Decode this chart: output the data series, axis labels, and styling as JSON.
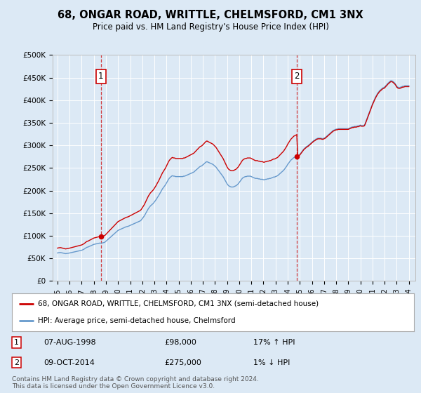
{
  "title": "68, ONGAR ROAD, WRITTLE, CHELMSFORD, CM1 3NX",
  "subtitle": "Price paid vs. HM Land Registry's House Price Index (HPI)",
  "background_color": "#dce9f5",
  "plot_bg_color": "#dce9f5",
  "y_ticks": [
    0,
    50000,
    100000,
    150000,
    200000,
    250000,
    300000,
    350000,
    400000,
    450000,
    500000
  ],
  "y_tick_labels": [
    "£0",
    "£50K",
    "£100K",
    "£150K",
    "£200K",
    "£250K",
    "£300K",
    "£350K",
    "£400K",
    "£450K",
    "£500K"
  ],
  "red_line_color": "#cc0000",
  "blue_line_color": "#6699cc",
  "annotation1_year": 1998.58,
  "annotation1_price": 98000,
  "annotation1_label": "1",
  "annotation1_date": "07-AUG-1998",
  "annotation1_price_str": "£98,000",
  "annotation1_hpi_str": "17% ↑ HPI",
  "annotation2_year": 2014.77,
  "annotation2_price": 275000,
  "annotation2_label": "2",
  "annotation2_date": "09-OCT-2014",
  "annotation2_price_str": "£275,000",
  "annotation2_hpi_str": "1% ↓ HPI",
  "legend_line1": "68, ONGAR ROAD, WRITTLE, CHELMSFORD, CM1 3NX (semi-detached house)",
  "legend_line2": "HPI: Average price, semi-detached house, Chelmsford",
  "footer1": "Contains HM Land Registry data © Crown copyright and database right 2024.",
  "footer2": "This data is licensed under the Open Government Licence v3.0.",
  "hpi_years": [
    1995.0,
    1995.083,
    1995.167,
    1995.25,
    1995.333,
    1995.417,
    1995.5,
    1995.583,
    1995.667,
    1995.75,
    1995.833,
    1995.917,
    1996.0,
    1996.083,
    1996.167,
    1996.25,
    1996.333,
    1996.417,
    1996.5,
    1996.583,
    1996.667,
    1996.75,
    1996.833,
    1996.917,
    1997.0,
    1997.083,
    1997.167,
    1997.25,
    1997.333,
    1997.417,
    1997.5,
    1997.583,
    1997.667,
    1997.75,
    1997.833,
    1997.917,
    1998.0,
    1998.083,
    1998.167,
    1998.25,
    1998.333,
    1998.417,
    1998.5,
    1998.583,
    1998.667,
    1998.75,
    1998.833,
    1998.917,
    1999.0,
    1999.083,
    1999.167,
    1999.25,
    1999.333,
    1999.417,
    1999.5,
    1999.583,
    1999.667,
    1999.75,
    1999.833,
    1999.917,
    2000.0,
    2000.083,
    2000.167,
    2000.25,
    2000.333,
    2000.417,
    2000.5,
    2000.583,
    2000.667,
    2000.75,
    2000.833,
    2000.917,
    2001.0,
    2001.083,
    2001.167,
    2001.25,
    2001.333,
    2001.417,
    2001.5,
    2001.583,
    2001.667,
    2001.75,
    2001.833,
    2001.917,
    2002.0,
    2002.083,
    2002.167,
    2002.25,
    2002.333,
    2002.417,
    2002.5,
    2002.583,
    2002.667,
    2002.75,
    2002.833,
    2002.917,
    2003.0,
    2003.083,
    2003.167,
    2003.25,
    2003.333,
    2003.417,
    2003.5,
    2003.583,
    2003.667,
    2003.75,
    2003.833,
    2003.917,
    2004.0,
    2004.083,
    2004.167,
    2004.25,
    2004.333,
    2004.417,
    2004.5,
    2004.583,
    2004.667,
    2004.75,
    2004.833,
    2004.917,
    2005.0,
    2005.083,
    2005.167,
    2005.25,
    2005.333,
    2005.417,
    2005.5,
    2005.583,
    2005.667,
    2005.75,
    2005.833,
    2005.917,
    2006.0,
    2006.083,
    2006.167,
    2006.25,
    2006.333,
    2006.417,
    2006.5,
    2006.583,
    2006.667,
    2006.75,
    2006.833,
    2006.917,
    2007.0,
    2007.083,
    2007.167,
    2007.25,
    2007.333,
    2007.417,
    2007.5,
    2007.583,
    2007.667,
    2007.75,
    2007.833,
    2007.917,
    2008.0,
    2008.083,
    2008.167,
    2008.25,
    2008.333,
    2008.417,
    2008.5,
    2008.583,
    2008.667,
    2008.75,
    2008.833,
    2008.917,
    2009.0,
    2009.083,
    2009.167,
    2009.25,
    2009.333,
    2009.417,
    2009.5,
    2009.583,
    2009.667,
    2009.75,
    2009.833,
    2009.917,
    2010.0,
    2010.083,
    2010.167,
    2010.25,
    2010.333,
    2010.417,
    2010.5,
    2010.583,
    2010.667,
    2010.75,
    2010.833,
    2010.917,
    2011.0,
    2011.083,
    2011.167,
    2011.25,
    2011.333,
    2011.417,
    2011.5,
    2011.583,
    2011.667,
    2011.75,
    2011.833,
    2011.917,
    2012.0,
    2012.083,
    2012.167,
    2012.25,
    2012.333,
    2012.417,
    2012.5,
    2012.583,
    2012.667,
    2012.75,
    2012.833,
    2012.917,
    2013.0,
    2013.083,
    2013.167,
    2013.25,
    2013.333,
    2013.417,
    2013.5,
    2013.583,
    2013.667,
    2013.75,
    2013.833,
    2013.917,
    2014.0,
    2014.083,
    2014.167,
    2014.25,
    2014.333,
    2014.417,
    2014.5,
    2014.583,
    2014.667,
    2014.75,
    2014.833,
    2014.917,
    2015.0,
    2015.083,
    2015.167,
    2015.25,
    2015.333,
    2015.417,
    2015.5,
    2015.583,
    2015.667,
    2015.75,
    2015.833,
    2015.917,
    2016.0,
    2016.083,
    2016.167,
    2016.25,
    2016.333,
    2016.417,
    2016.5,
    2016.583,
    2016.667,
    2016.75,
    2016.833,
    2016.917,
    2017.0,
    2017.083,
    2017.167,
    2017.25,
    2017.333,
    2017.417,
    2017.5,
    2017.583,
    2017.667,
    2017.75,
    2017.833,
    2017.917,
    2018.0,
    2018.083,
    2018.167,
    2018.25,
    2018.333,
    2018.417,
    2018.5,
    2018.583,
    2018.667,
    2018.75,
    2018.833,
    2018.917,
    2019.0,
    2019.083,
    2019.167,
    2019.25,
    2019.333,
    2019.417,
    2019.5,
    2019.583,
    2019.667,
    2019.75,
    2019.833,
    2019.917,
    2020.0,
    2020.083,
    2020.167,
    2020.25,
    2020.333,
    2020.417,
    2020.5,
    2020.583,
    2020.667,
    2020.75,
    2020.833,
    2020.917,
    2021.0,
    2021.083,
    2021.167,
    2021.25,
    2021.333,
    2021.417,
    2021.5,
    2021.583,
    2021.667,
    2021.75,
    2021.833,
    2021.917,
    2022.0,
    2022.083,
    2022.167,
    2022.25,
    2022.333,
    2022.417,
    2022.5,
    2022.583,
    2022.667,
    2022.75,
    2022.833,
    2022.917,
    2023.0,
    2023.083,
    2023.167,
    2023.25,
    2023.333,
    2023.417,
    2023.5,
    2023.583,
    2023.667,
    2023.75,
    2023.833,
    2023.917,
    2024.0
  ],
  "hpi_values": [
    62000,
    62500,
    62800,
    63000,
    62500,
    62000,
    61500,
    61000,
    60500,
    60800,
    61200,
    61500,
    62000,
    62500,
    63000,
    63500,
    64000,
    64500,
    65000,
    65500,
    66000,
    66500,
    67000,
    67500,
    68000,
    69000,
    70000,
    71500,
    73000,
    74500,
    75000,
    76000,
    77000,
    78000,
    79000,
    80000,
    81000,
    81500,
    82000,
    82500,
    83000,
    83500,
    84000,
    83500,
    84000,
    84500,
    85000,
    86000,
    88000,
    90000,
    92000,
    94000,
    96000,
    98000,
    100000,
    102000,
    104000,
    106000,
    108000,
    110000,
    112000,
    113000,
    114000,
    115000,
    116000,
    117000,
    118000,
    119000,
    120000,
    120500,
    121000,
    122000,
    123000,
    124000,
    125000,
    126000,
    127000,
    128000,
    129000,
    130000,
    131000,
    132000,
    133000,
    135000,
    138000,
    141000,
    144000,
    148000,
    152000,
    156000,
    160000,
    163000,
    166000,
    168000,
    170000,
    172000,
    175000,
    178000,
    181000,
    185000,
    188000,
    192000,
    196000,
    200000,
    204000,
    207000,
    210000,
    213000,
    217000,
    221000,
    225000,
    228000,
    230000,
    232000,
    233000,
    232000,
    232000,
    231000,
    231000,
    231000,
    231000,
    231000,
    231000,
    231000,
    231000,
    232000,
    232000,
    233000,
    234000,
    235000,
    236000,
    237000,
    238000,
    239000,
    240000,
    241000,
    243000,
    245000,
    247000,
    249000,
    251000,
    253000,
    254000,
    255000,
    257000,
    259000,
    261000,
    263000,
    264000,
    263000,
    262000,
    261000,
    260000,
    259000,
    258000,
    256000,
    254000,
    252000,
    249000,
    246000,
    243000,
    240000,
    237000,
    234000,
    231000,
    227000,
    223000,
    219000,
    215000,
    212000,
    210000,
    209000,
    208000,
    208000,
    208000,
    209000,
    210000,
    211000,
    213000,
    215000,
    218000,
    221000,
    224000,
    227000,
    229000,
    230000,
    231000,
    231000,
    232000,
    232000,
    232000,
    232000,
    231000,
    230000,
    229000,
    228000,
    227000,
    227000,
    227000,
    226000,
    226000,
    225000,
    225000,
    225000,
    224000,
    224000,
    225000,
    225000,
    226000,
    226000,
    227000,
    227000,
    228000,
    229000,
    230000,
    230000,
    231000,
    232000,
    233000,
    235000,
    237000,
    239000,
    241000,
    243000,
    245000,
    248000,
    251000,
    254000,
    258000,
    261000,
    264000,
    267000,
    269000,
    271000,
    273000,
    274000,
    275000,
    276000,
    277000,
    278000,
    280000,
    283000,
    286000,
    289000,
    292000,
    294000,
    296000,
    298000,
    299000,
    301000,
    303000,
    305000,
    307000,
    309000,
    311000,
    312000,
    314000,
    315000,
    316000,
    316000,
    316000,
    316000,
    315000,
    315000,
    316000,
    317000,
    319000,
    321000,
    323000,
    325000,
    327000,
    329000,
    331000,
    333000,
    334000,
    335000,
    336000,
    336000,
    337000,
    337000,
    337000,
    337000,
    337000,
    337000,
    337000,
    337000,
    337000,
    337000,
    337000,
    338000,
    339000,
    340000,
    341000,
    341000,
    342000,
    342000,
    342000,
    343000,
    343000,
    344000,
    345000,
    344000,
    344000,
    344000,
    345000,
    350000,
    356000,
    362000,
    368000,
    374000,
    380000,
    386000,
    392000,
    397000,
    402000,
    407000,
    411000,
    415000,
    418000,
    421000,
    423000,
    425000,
    427000,
    428000,
    429000,
    432000,
    434000,
    437000,
    439000,
    441000,
    443000,
    443000,
    442000,
    440000,
    438000,
    435000,
    431000,
    429000,
    428000,
    428000,
    429000,
    430000,
    431000,
    431000,
    432000,
    432000,
    432000,
    432000,
    432000
  ]
}
